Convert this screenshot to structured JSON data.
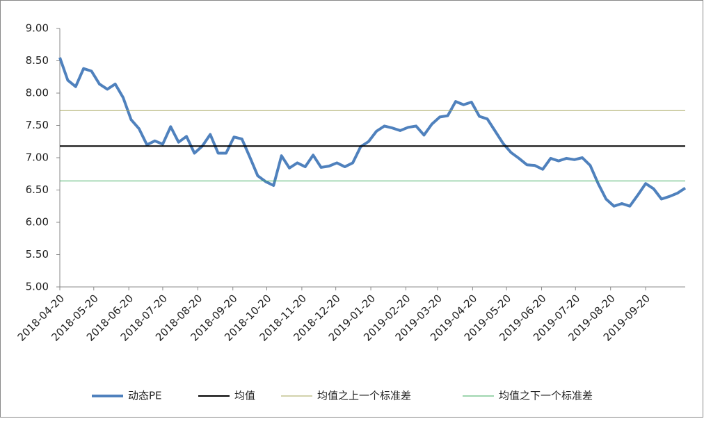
{
  "chart_data": {
    "type": "line",
    "x": [
      "2018-04-20",
      "2018-04-27",
      "2018-05-04",
      "2018-05-11",
      "2018-05-18",
      "2018-05-25",
      "2018-06-01",
      "2018-06-08",
      "2018-06-15",
      "2018-06-22",
      "2018-06-29",
      "2018-07-06",
      "2018-07-13",
      "2018-07-20",
      "2018-07-27",
      "2018-08-03",
      "2018-08-10",
      "2018-08-17",
      "2018-08-24",
      "2018-08-31",
      "2018-09-07",
      "2018-09-14",
      "2018-09-21",
      "2018-09-28",
      "2018-10-05",
      "2018-10-12",
      "2018-10-19",
      "2018-10-26",
      "2018-11-02",
      "2018-11-09",
      "2018-11-16",
      "2018-11-23",
      "2018-11-30",
      "2018-12-07",
      "2018-12-14",
      "2018-12-21",
      "2018-12-28",
      "2019-01-04",
      "2019-01-11",
      "2019-01-18",
      "2019-01-25",
      "2019-02-01",
      "2019-02-08",
      "2019-02-15",
      "2019-02-22",
      "2019-03-01",
      "2019-03-08",
      "2019-03-15",
      "2019-03-22",
      "2019-03-29",
      "2019-04-05",
      "2019-04-12",
      "2019-04-19",
      "2019-04-26",
      "2019-05-03",
      "2019-05-10",
      "2019-05-17",
      "2019-05-24",
      "2019-05-31",
      "2019-06-07",
      "2019-06-14",
      "2019-06-21",
      "2019-06-28",
      "2019-07-05",
      "2019-07-12",
      "2019-07-19",
      "2019-07-26",
      "2019-08-02",
      "2019-08-09",
      "2019-08-16",
      "2019-08-23",
      "2019-08-30",
      "2019-09-06",
      "2019-09-13",
      "2019-09-20",
      "2019-09-27",
      "2019-10-04",
      "2019-10-11",
      "2019-10-18",
      "2019-10-25"
    ],
    "series": [
      {
        "name": "动态PE",
        "color": "#4f81bd",
        "values": [
          8.55,
          8.2,
          8.1,
          8.38,
          8.34,
          8.14,
          8.06,
          8.14,
          7.93,
          7.59,
          7.45,
          7.2,
          7.26,
          7.21,
          7.48,
          7.24,
          7.33,
          7.07,
          7.18,
          7.36,
          7.07,
          7.07,
          7.32,
          7.29,
          7.01,
          6.72,
          6.63,
          6.57,
          7.03,
          6.84,
          6.92,
          6.86,
          7.04,
          6.85,
          6.87,
          6.92,
          6.86,
          6.92,
          7.17,
          7.25,
          7.41,
          7.49,
          7.46,
          7.42,
          7.47,
          7.49,
          7.35,
          7.52,
          7.63,
          7.65,
          7.87,
          7.82,
          7.86,
          7.64,
          7.6,
          7.41,
          7.22,
          7.08,
          6.99,
          6.89,
          6.88,
          6.82,
          6.99,
          6.95,
          6.99,
          6.97,
          7.0,
          6.88,
          6.6,
          6.36,
          6.25,
          6.29,
          6.25,
          6.42,
          6.6,
          6.52,
          6.36,
          6.4,
          6.45,
          6.53
        ]
      },
      {
        "name": "均值",
        "color": "#000000",
        "level": 7.18
      },
      {
        "name": "均值之上一个标准差",
        "color": "#a5a55a",
        "level": 7.73
      },
      {
        "name": "均值之下一个标准差",
        "color": "#3cab5e",
        "level": 6.64
      }
    ],
    "xlim": [
      "2018-04-20",
      "2019-10-25"
    ],
    "xticks": [
      "2018-04-20",
      "2018-05-20",
      "2018-06-20",
      "2018-07-20",
      "2018-08-20",
      "2018-09-20",
      "2018-10-20",
      "2018-11-20",
      "2018-12-20",
      "2019-01-20",
      "2019-02-20",
      "2019-03-20",
      "2019-04-20",
      "2019-05-20",
      "2019-06-20",
      "2019-07-20",
      "2019-08-20",
      "2019-09-20"
    ],
    "ylim": [
      5,
      9
    ],
    "yticks": [
      {
        "value": 5,
        "label": "5.00"
      },
      {
        "value": 5.5,
        "label": "5.50"
      },
      {
        "value": 6,
        "label": "6.00"
      },
      {
        "value": 6.5,
        "label": "6.50"
      },
      {
        "value": 7,
        "label": "7.00"
      },
      {
        "value": 7.5,
        "label": "7.50"
      },
      {
        "value": 8,
        "label": "8.00"
      },
      {
        "value": 8.5,
        "label": "8.50"
      },
      {
        "value": 9,
        "label": "9.00"
      }
    ],
    "legend": "bottom"
  }
}
